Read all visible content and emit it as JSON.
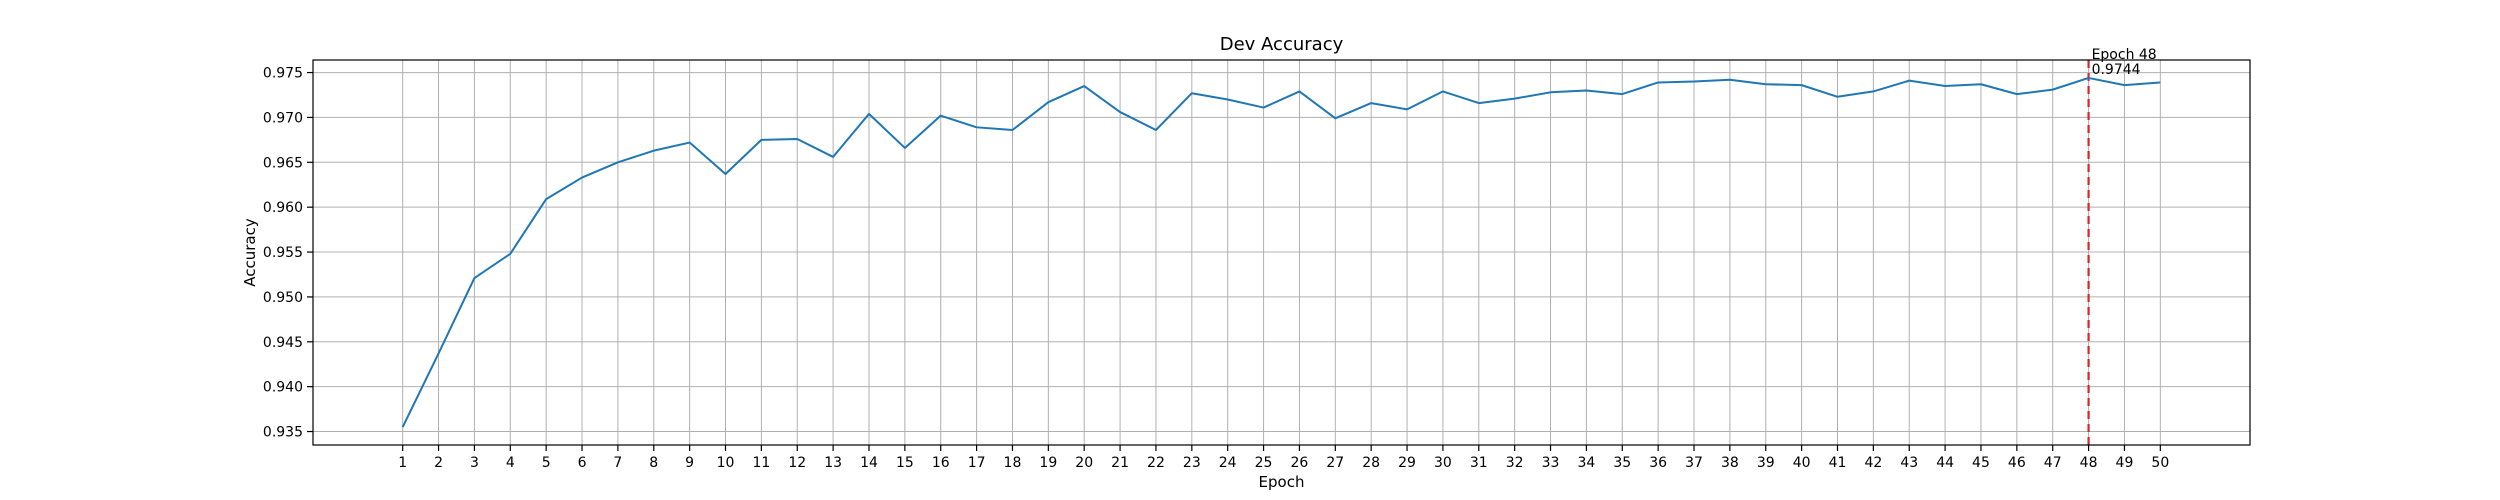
{
  "chart_data": {
    "type": "line",
    "title": "Dev Accuracy",
    "xlabel": "Epoch",
    "ylabel": "Accuracy",
    "xlim": [
      -1.5,
      52.5
    ],
    "ylim": [
      0.9335,
      0.9764
    ],
    "x": [
      1,
      2,
      3,
      4,
      5,
      6,
      7,
      8,
      9,
      10,
      11,
      12,
      13,
      14,
      15,
      16,
      17,
      18,
      19,
      20,
      21,
      22,
      23,
      24,
      25,
      26,
      27,
      28,
      29,
      30,
      31,
      32,
      33,
      34,
      35,
      36,
      37,
      38,
      39,
      40,
      41,
      42,
      43,
      44,
      45,
      46,
      47,
      48,
      49,
      50
    ],
    "y_ticks": [
      0.935,
      0.94,
      0.945,
      0.95,
      0.955,
      0.96,
      0.965,
      0.97,
      0.975
    ],
    "y_tick_labels": [
      "0.935",
      "0.940",
      "0.945",
      "0.950",
      "0.955",
      "0.960",
      "0.965",
      "0.970",
      "0.975"
    ],
    "series": [
      {
        "color": "#1f77b4",
        "values": [
          0.9355,
          0.9437,
          0.9521,
          0.9548,
          0.9609,
          0.9633,
          0.965,
          0.9663,
          0.9672,
          0.9637,
          0.9675,
          0.9676,
          0.9656,
          0.9704,
          0.9666,
          0.9702,
          0.9689,
          0.9686,
          0.9717,
          0.9735,
          0.9706,
          0.9686,
          0.9727,
          0.972,
          0.9711,
          0.9729,
          0.9699,
          0.9716,
          0.9709,
          0.9729,
          0.9716,
          0.9721,
          0.9728,
          0.973,
          0.9726,
          0.9739,
          0.974,
          0.9742,
          0.9737,
          0.9736,
          0.9723,
          0.9729,
          0.9741,
          0.9735,
          0.9737,
          0.9726,
          0.9731,
          0.9744,
          0.9736,
          0.9739
        ]
      }
    ],
    "grid": true,
    "marker_line": {
      "x": 48,
      "color": "#d62728",
      "style": "dashed"
    },
    "annotation": {
      "x": 48,
      "y": 0.9744,
      "line1": "Epoch 48",
      "line2": "0.9744"
    }
  }
}
